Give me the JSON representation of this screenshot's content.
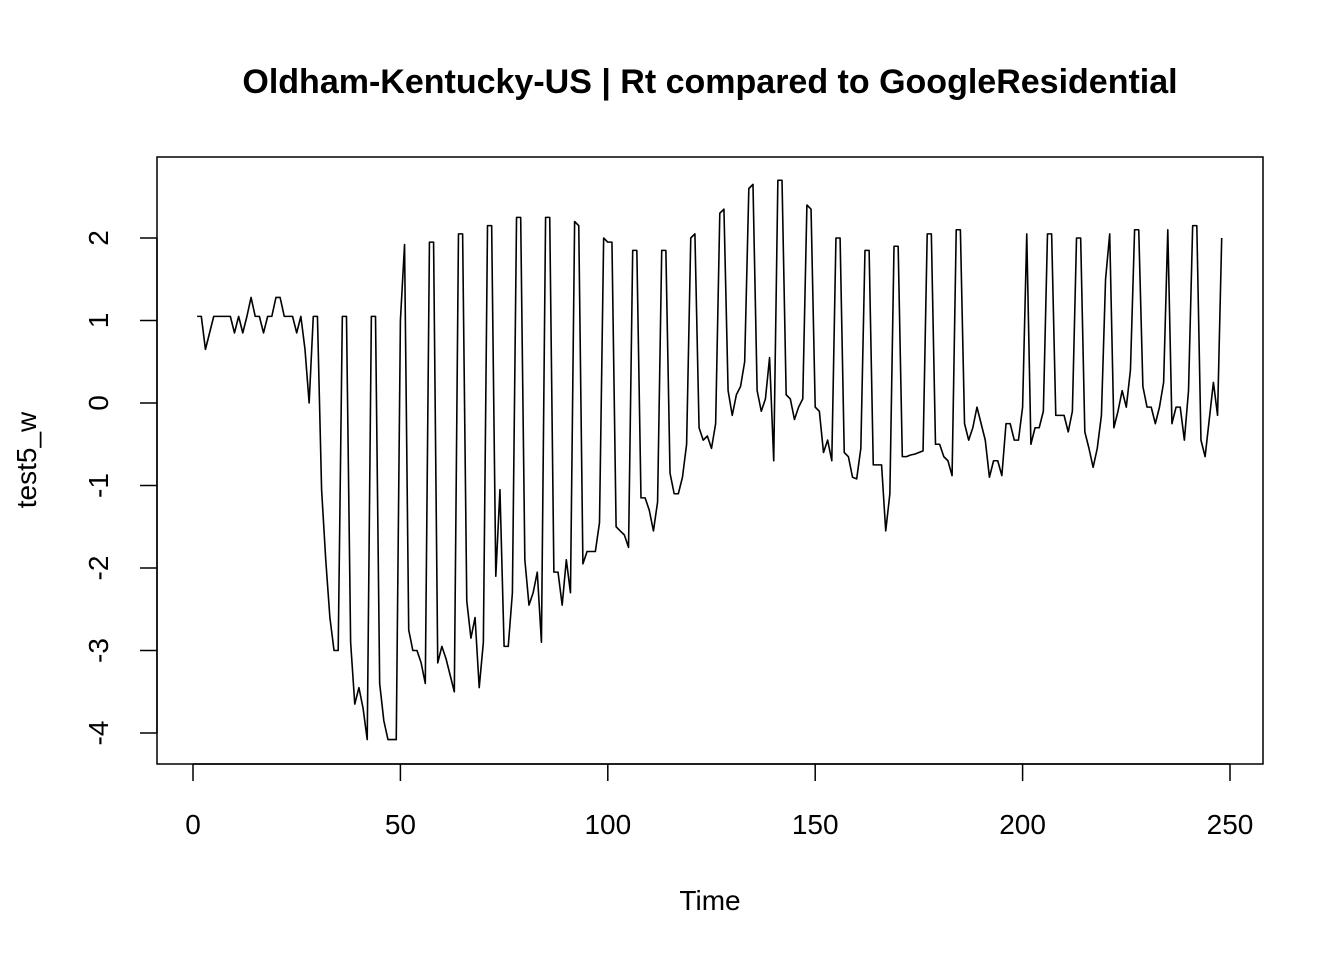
{
  "chart_data": {
    "type": "line",
    "title": "Oldham-Kentucky-US | Rt compared to GoogleResidential",
    "xlabel": "Time",
    "ylabel": "test5_w",
    "xlim": [
      1,
      248
    ],
    "ylim": [
      -4.1,
      2.7
    ],
    "x_ticks": [
      0,
      50,
      100,
      150,
      200,
      250
    ],
    "y_ticks": [
      -4,
      -3,
      -2,
      -1,
      0,
      1,
      2
    ],
    "grid": false,
    "legend": "none",
    "line_color": "#000000",
    "x_start": 1,
    "values": [
      1.05,
      1.05,
      0.65,
      0.85,
      1.05,
      1.05,
      1.05,
      1.05,
      1.05,
      0.85,
      1.05,
      0.85,
      1.05,
      1.28,
      1.05,
      1.05,
      0.85,
      1.05,
      1.05,
      1.28,
      1.28,
      1.05,
      1.05,
      1.05,
      0.85,
      1.05,
      0.65,
      0.0,
      1.05,
      1.05,
      -1.05,
      -1.9,
      -2.6,
      -3.0,
      -3.0,
      1.05,
      1.05,
      -2.9,
      -3.65,
      -3.45,
      -3.7,
      -4.08,
      1.05,
      1.05,
      -3.4,
      -3.85,
      -4.08,
      -4.08,
      -4.08,
      1.0,
      1.92,
      -2.75,
      -3.0,
      -3.0,
      -3.15,
      -3.4,
      1.95,
      1.95,
      -3.15,
      -2.95,
      -3.1,
      -3.3,
      -3.5,
      2.05,
      2.05,
      -2.4,
      -2.85,
      -2.6,
      -3.45,
      -2.9,
      2.15,
      2.15,
      -2.1,
      -1.05,
      -2.95,
      -2.95,
      -2.3,
      2.25,
      2.25,
      -1.9,
      -2.45,
      -2.3,
      -2.05,
      -2.9,
      2.25,
      2.25,
      -2.05,
      -2.05,
      -2.45,
      -1.9,
      -2.3,
      2.2,
      2.15,
      -1.95,
      -1.8,
      -1.8,
      -1.8,
      -1.45,
      2.0,
      1.95,
      1.95,
      -1.5,
      -1.55,
      -1.6,
      -1.75,
      1.85,
      1.85,
      -1.15,
      -1.15,
      -1.3,
      -1.55,
      -1.2,
      1.85,
      1.85,
      -0.85,
      -1.1,
      -1.1,
      -0.9,
      -0.5,
      2.0,
      2.05,
      -0.3,
      -0.45,
      -0.4,
      -0.55,
      -0.25,
      2.3,
      2.35,
      0.15,
      -0.15,
      0.1,
      0.2,
      0.5,
      2.6,
      2.65,
      0.15,
      -0.1,
      0.05,
      0.55,
      -0.7,
      2.7,
      2.7,
      0.1,
      0.05,
      -0.2,
      -0.05,
      0.05,
      2.4,
      2.35,
      -0.05,
      -0.1,
      -0.6,
      -0.45,
      -0.7,
      2.0,
      2.0,
      -0.6,
      -0.65,
      -0.9,
      -0.92,
      -0.55,
      1.85,
      1.85,
      -0.75,
      -0.75,
      -0.75,
      -1.55,
      -1.1,
      1.9,
      1.9,
      -0.65,
      -0.65,
      -0.63,
      -0.62,
      -0.6,
      -0.58,
      2.05,
      2.05,
      -0.5,
      -0.5,
      -0.65,
      -0.7,
      -0.88,
      2.1,
      2.1,
      -0.25,
      -0.45,
      -0.3,
      -0.05,
      -0.25,
      -0.45,
      -0.9,
      -0.7,
      -0.7,
      -0.88,
      -0.25,
      -0.25,
      -0.45,
      -0.45,
      -0.05,
      2.05,
      -0.5,
      -0.3,
      -0.3,
      -0.1,
      2.05,
      2.05,
      -0.15,
      -0.15,
      -0.15,
      -0.35,
      -0.1,
      2.0,
      2.0,
      -0.35,
      -0.55,
      -0.78,
      -0.55,
      -0.15,
      1.5,
      2.05,
      -0.3,
      -0.1,
      0.15,
      -0.05,
      0.4,
      2.1,
      2.1,
      0.2,
      -0.05,
      -0.05,
      -0.25,
      -0.05,
      0.25,
      2.1,
      -0.25,
      -0.05,
      -0.05,
      -0.45,
      0.15,
      2.15,
      2.15,
      -0.45,
      -0.65,
      -0.2,
      0.25,
      -0.15,
      2.0
    ]
  }
}
